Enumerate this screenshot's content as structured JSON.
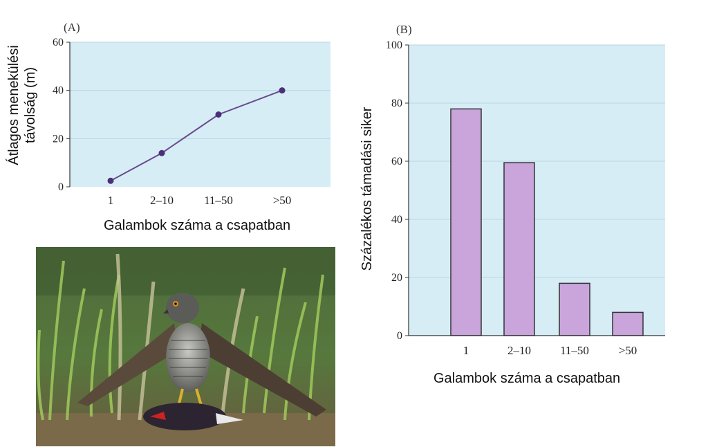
{
  "chart_data": [
    {
      "type": "line",
      "panel": "(A)",
      "categories": [
        "1",
        "2–10",
        "11–50",
        ">50"
      ],
      "values": [
        2.5,
        14,
        30,
        40
      ],
      "ylabel": "Átlagos menekülési távolság (m)",
      "ylabel_lines": [
        "Átlagos menekülési",
        "távolság (m)"
      ],
      "xlabel": "Galambok száma a csapatban",
      "ylim": [
        0,
        60
      ],
      "yticks": [
        0,
        20,
        40,
        60
      ],
      "grid": true,
      "colors": {
        "background": "#d6edf6",
        "grid": "#b9d6e3",
        "line": "#6a4a8c",
        "marker": "#4b2f78"
      }
    },
    {
      "type": "bar",
      "panel": "(B)",
      "categories": [
        "1",
        "2–10",
        "11–50",
        ">50"
      ],
      "values": [
        78,
        59.5,
        18,
        8
      ],
      "ylabel": "Százalékos támadási siker",
      "xlabel": "Galambok száma a csapatban",
      "ylim": [
        0,
        100
      ],
      "yticks": [
        0,
        20,
        40,
        60,
        80,
        100
      ],
      "grid": true,
      "colors": {
        "background": "#d6edf6",
        "grid": "#b9d6e3",
        "bar": "#c9a5dc",
        "bar_edge": "#333333"
      }
    }
  ],
  "photo": {
    "subject": "hawk-with-prey-photo"
  }
}
